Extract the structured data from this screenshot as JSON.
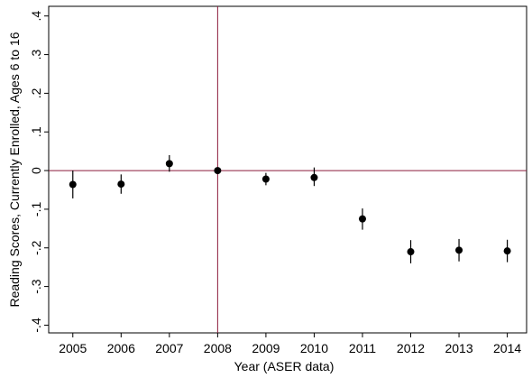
{
  "chart_data": {
    "type": "scatter",
    "xlabel": "Year   (ASER data)",
    "ylabel": "Reading Scores, Currently Enrolled, Ages 6 to 16",
    "x_ticks": [
      "2005",
      "2006",
      "2007",
      "2008",
      "2009",
      "2010",
      "2011",
      "2012",
      "2013",
      "2014"
    ],
    "y_ticks": [
      ".4",
      ".3",
      ".2",
      ".1",
      "0",
      "-.1",
      "-.2",
      "-.3",
      "-.4"
    ],
    "y_tick_values": [
      0.4,
      0.3,
      0.2,
      0.1,
      0,
      -0.1,
      -0.2,
      -0.3,
      -0.4
    ],
    "xlim": [
      2004.5,
      2014.4
    ],
    "ylim": [
      -0.42,
      0.425
    ],
    "grid": false,
    "legend": "none",
    "reference_lines": {
      "vertical_x": 2008,
      "horizontal_y": 0,
      "color": "#8b1a3a"
    },
    "marker_color": "#000000",
    "points": [
      {
        "x": 2005,
        "y": -0.036,
        "lo": -0.072,
        "hi": 0.0
      },
      {
        "x": 2006,
        "y": -0.035,
        "lo": -0.06,
        "hi": -0.01
      },
      {
        "x": 2007,
        "y": 0.018,
        "lo": -0.003,
        "hi": 0.04
      },
      {
        "x": 2008,
        "y": 0.0,
        "lo": 0.0,
        "hi": 0.0
      },
      {
        "x": 2009,
        "y": -0.022,
        "lo": -0.038,
        "hi": -0.006
      },
      {
        "x": 2010,
        "y": -0.018,
        "lo": -0.04,
        "hi": 0.008
      },
      {
        "x": 2011,
        "y": -0.125,
        "lo": -0.153,
        "hi": -0.098
      },
      {
        "x": 2012,
        "y": -0.21,
        "lo": -0.24,
        "hi": -0.18
      },
      {
        "x": 2013,
        "y": -0.206,
        "lo": -0.235,
        "hi": -0.177
      },
      {
        "x": 2014,
        "y": -0.208,
        "lo": -0.237,
        "hi": -0.179
      }
    ]
  }
}
